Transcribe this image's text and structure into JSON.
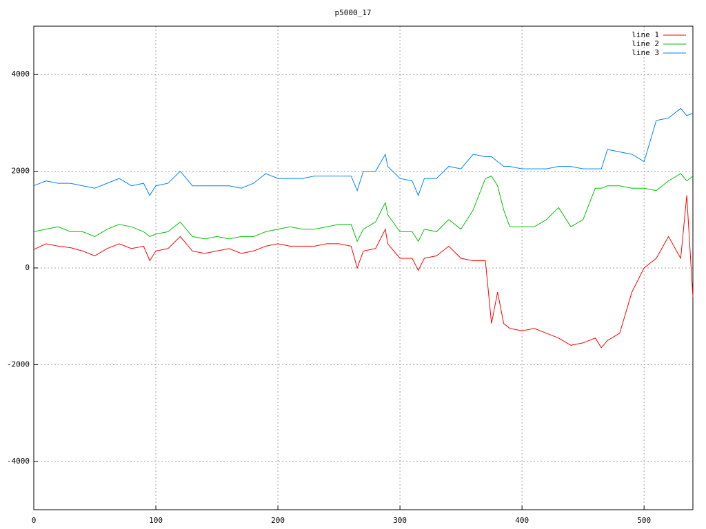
{
  "chart_data": {
    "type": "line",
    "title": "p5000_17",
    "x": [
      0,
      10,
      20,
      30,
      40,
      50,
      60,
      70,
      80,
      90,
      95,
      100,
      110,
      120,
      130,
      140,
      150,
      160,
      170,
      180,
      190,
      200,
      210,
      220,
      230,
      240,
      250,
      260,
      265,
      270,
      280,
      288,
      290,
      300,
      310,
      315,
      320,
      330,
      340,
      350,
      360,
      370,
      375,
      380,
      385,
      390,
      400,
      410,
      420,
      430,
      440,
      450,
      460,
      465,
      470,
      480,
      490,
      500,
      510,
      520,
      530,
      535,
      540
    ],
    "series": [
      {
        "name": "line 1",
        "color": "#ff0000",
        "values": [
          380,
          500,
          450,
          420,
          350,
          250,
          400,
          500,
          400,
          450,
          150,
          350,
          400,
          650,
          350,
          300,
          350,
          400,
          300,
          350,
          450,
          500,
          450,
          450,
          450,
          500,
          500,
          450,
          0,
          350,
          400,
          800,
          500,
          200,
          200,
          -50,
          200,
          250,
          450,
          200,
          150,
          150,
          -1150,
          -500,
          -1150,
          -1250,
          -1300,
          -1250,
          -1350,
          -1450,
          -1600,
          -1550,
          -1450,
          -1650,
          -1500,
          -1350,
          -500,
          0,
          200,
          650,
          200,
          1500,
          -600
        ]
      },
      {
        "name": "line 2",
        "color": "#00c000",
        "values": [
          750,
          800,
          850,
          750,
          750,
          650,
          800,
          900,
          850,
          750,
          650,
          700,
          750,
          950,
          650,
          600,
          650,
          600,
          650,
          650,
          750,
          800,
          850,
          800,
          800,
          850,
          900,
          900,
          550,
          800,
          950,
          1350,
          1100,
          750,
          750,
          550,
          800,
          750,
          1000,
          800,
          1200,
          1850,
          1900,
          1700,
          1200,
          850,
          850,
          850,
          1000,
          1250,
          850,
          1000,
          1650,
          1650,
          1700,
          1700,
          1650,
          1650,
          1600,
          1800,
          1950,
          1800,
          1900
        ]
      },
      {
        "name": "line 3",
        "color": "#0080ff",
        "values": [
          1700,
          1800,
          1750,
          1750,
          1700,
          1650,
          1750,
          1850,
          1700,
          1750,
          1500,
          1700,
          1750,
          2000,
          1700,
          1700,
          1700,
          1700,
          1650,
          1750,
          1950,
          1850,
          1850,
          1850,
          1900,
          1900,
          1900,
          1900,
          1600,
          2000,
          2000,
          2350,
          2100,
          1850,
          1800,
          1500,
          1850,
          1850,
          2100,
          2050,
          2350,
          2300,
          2300,
          2200,
          2100,
          2100,
          2050,
          2050,
          2050,
          2100,
          2100,
          2050,
          2050,
          2050,
          2450,
          2400,
          2350,
          2200,
          3050,
          3100,
          3300,
          3150,
          3200
        ]
      }
    ],
    "xlim": [
      0,
      540
    ],
    "ylim": [
      -5000,
      5000
    ],
    "xticks": [
      0,
      100,
      200,
      300,
      400,
      500
    ],
    "yticks": [
      -4000,
      -2000,
      0,
      2000,
      4000
    ],
    "grid": true,
    "legend": "top-right"
  }
}
